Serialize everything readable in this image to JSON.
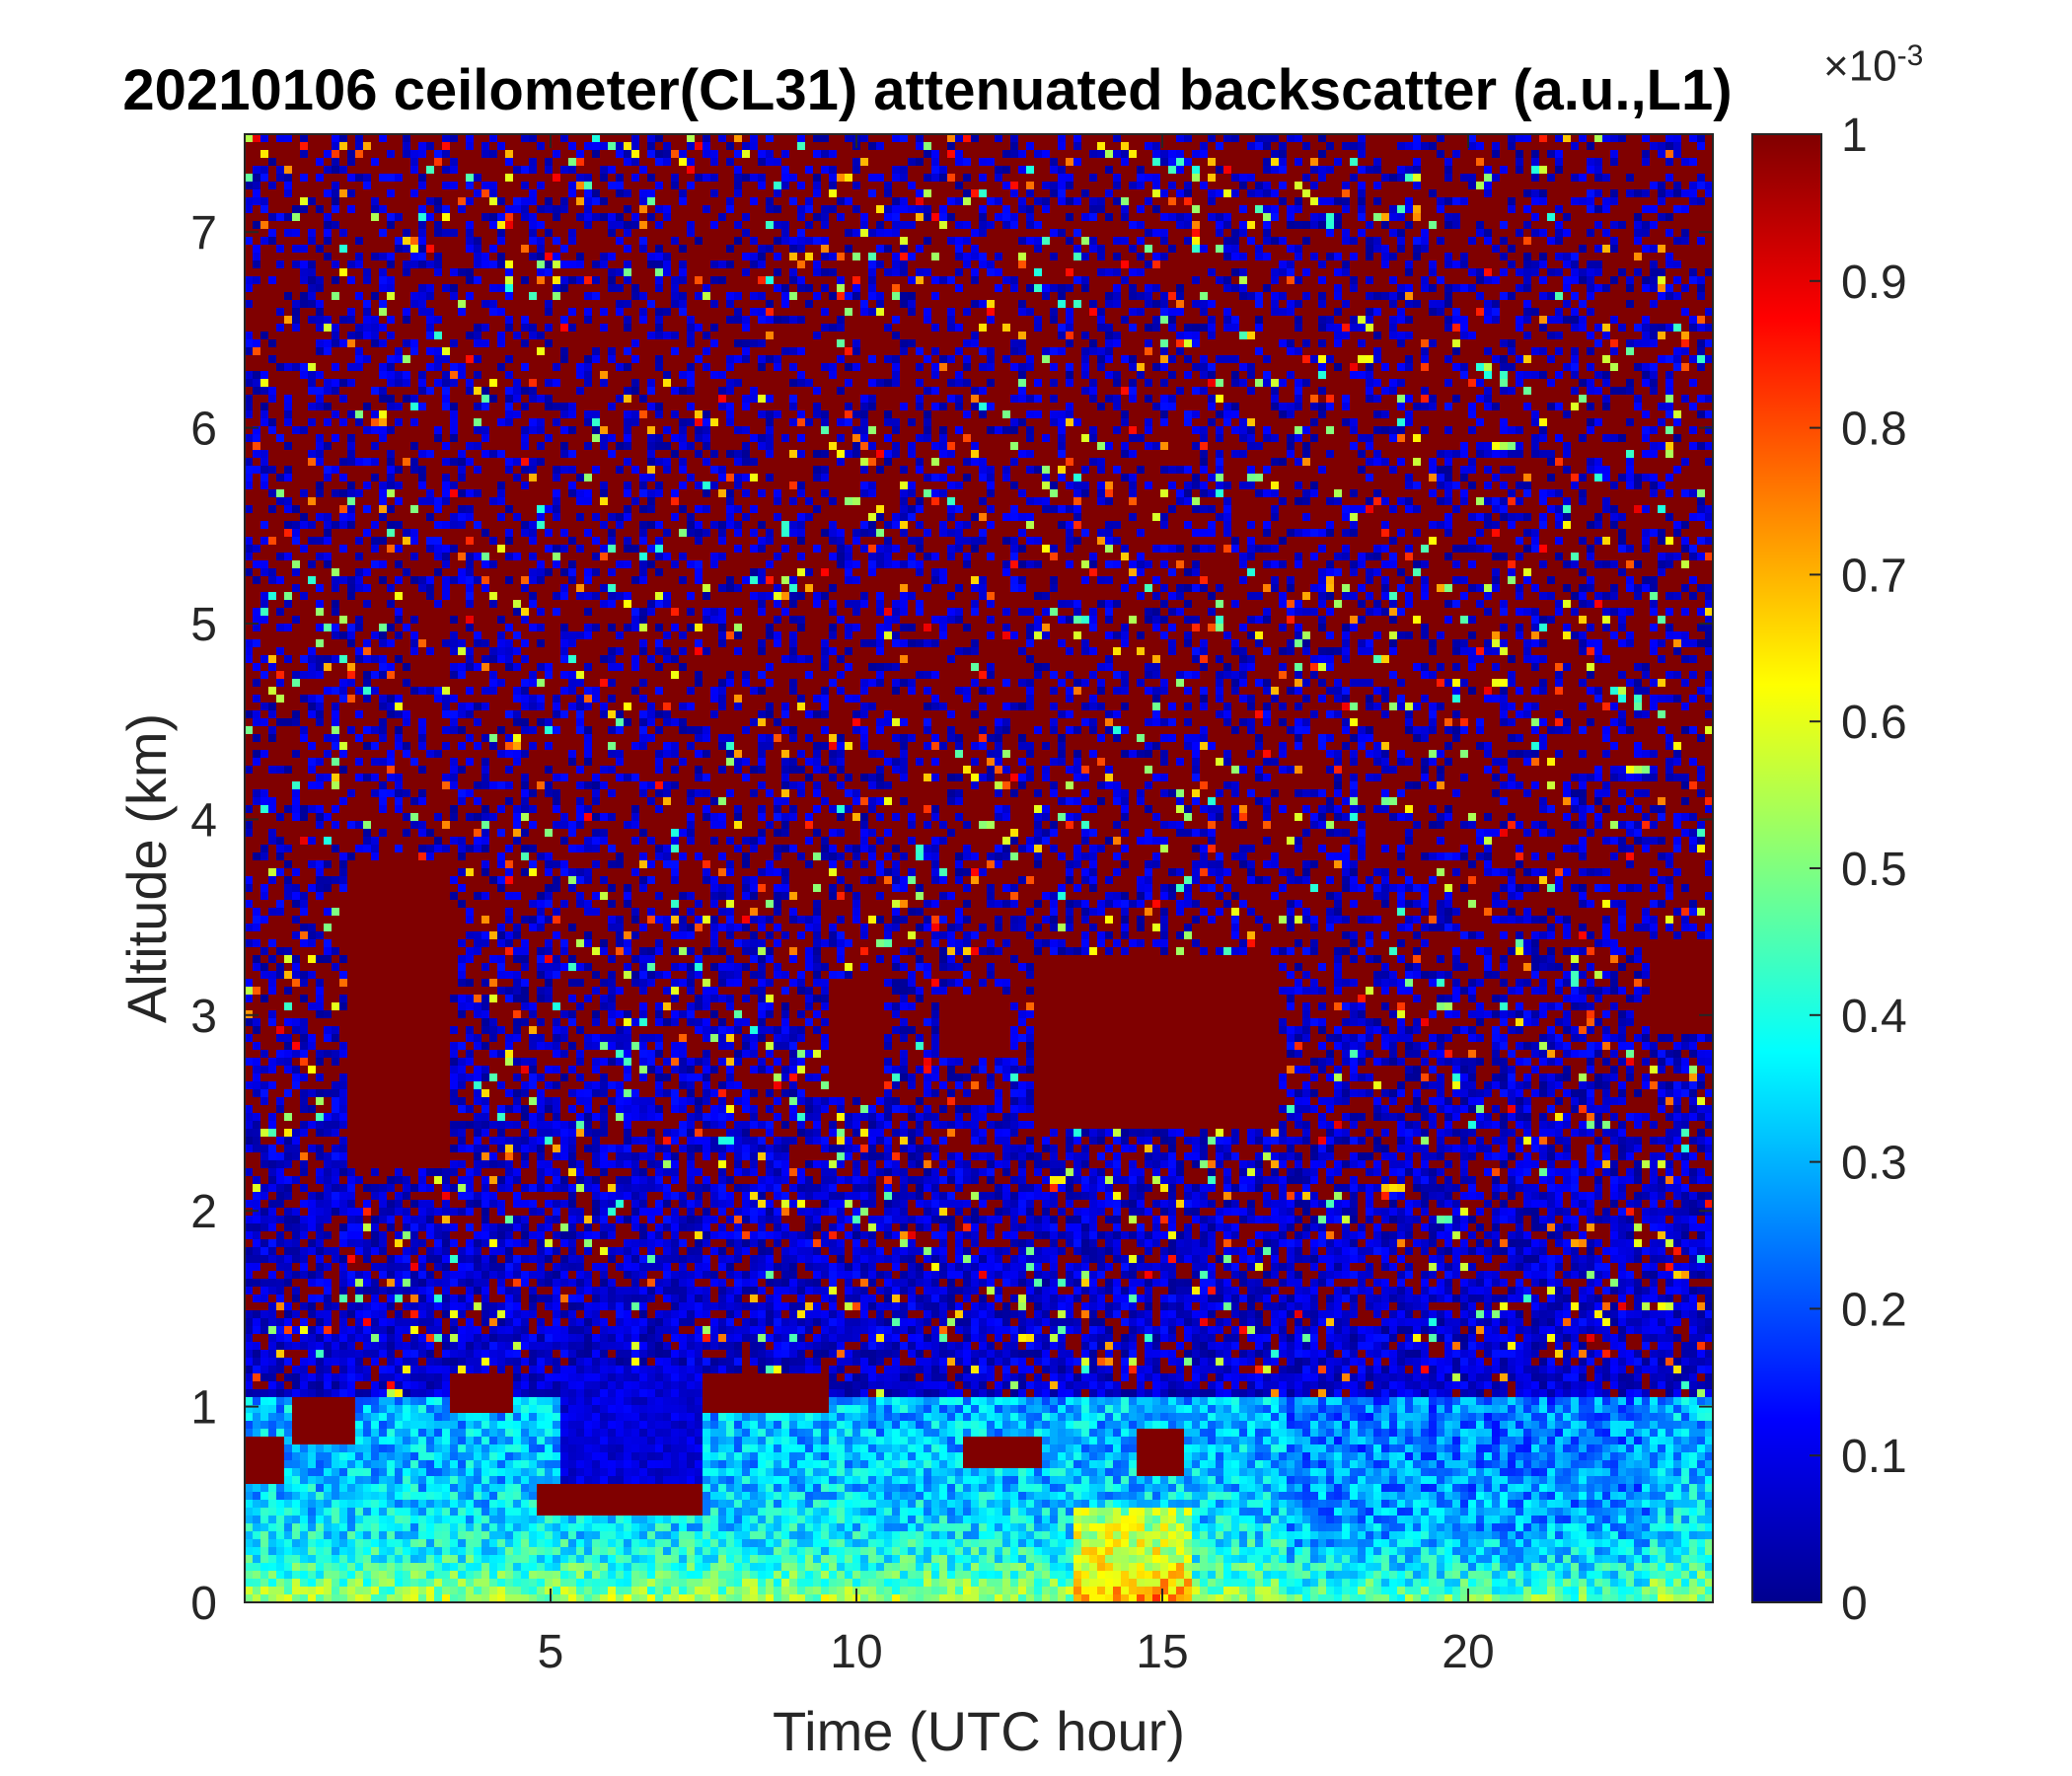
{
  "chart_data": {
    "type": "heatmap",
    "title": "20210106 ceilometer(CL31) attenuated backscatter (a.u.,L1)",
    "xlabel": "Time (UTC hour)",
    "ylabel": "Altitude (km)",
    "xlim": [
      0,
      24
    ],
    "ylim": [
      0,
      7.5
    ],
    "xticks": [
      5,
      10,
      15,
      20
    ],
    "yticks": [
      0,
      1,
      2,
      3,
      4,
      5,
      6,
      7
    ],
    "colormap": "jet",
    "colorbar": {
      "range": [
        0,
        1
      ],
      "ticks": [
        0,
        0.1,
        0.2,
        0.3,
        0.4,
        0.5,
        0.6,
        0.7,
        0.8,
        0.9,
        1
      ],
      "tick_labels": [
        "0",
        "0.1",
        "0.2",
        "0.3",
        "0.4",
        "0.5",
        "0.6",
        "0.7",
        "0.8",
        "0.9",
        "1"
      ],
      "exponent_base": "×10",
      "exponent": "-3"
    },
    "features": {
      "background": "noise mixture of dark blue and dark red above ~1.5 km",
      "boundary_layer": "cyan/yellow aerosol layer from 0 to ~1 km",
      "clouds": [
        {
          "x": [
            1.7,
            3.4
          ],
          "y": [
            2.2,
            3.8
          ]
        },
        {
          "x": [
            9.5,
            10.4
          ],
          "y": [
            2.6,
            3.2
          ]
        },
        {
          "x": [
            11.3,
            12.5
          ],
          "y": [
            2.8,
            3.1
          ]
        },
        {
          "x": [
            12.9,
            16.9
          ],
          "y": [
            2.4,
            3.3
          ]
        },
        {
          "x": [
            23.0,
            24.0
          ],
          "y": [
            2.9,
            3.4
          ]
        },
        {
          "x": [
            0.0,
            0.7
          ],
          "y": [
            0.6,
            0.85
          ]
        },
        {
          "x": [
            0.8,
            1.8
          ],
          "y": [
            0.8,
            1.05
          ]
        },
        {
          "x": [
            3.3,
            4.4
          ],
          "y": [
            0.95,
            1.15
          ]
        },
        {
          "x": [
            7.5,
            9.6
          ],
          "y": [
            0.95,
            1.15
          ]
        },
        {
          "x": [
            11.7,
            13.0
          ],
          "y": [
            0.7,
            0.85
          ]
        },
        {
          "x": [
            14.6,
            15.3
          ],
          "y": [
            0.65,
            0.9
          ]
        },
        {
          "x": [
            4.8,
            7.5
          ],
          "y": [
            0.45,
            0.6
          ]
        }
      ],
      "dark_region": {
        "x": [
          5.2,
          7.5
        ],
        "y": [
          0.6,
          1.2
        ]
      }
    }
  }
}
